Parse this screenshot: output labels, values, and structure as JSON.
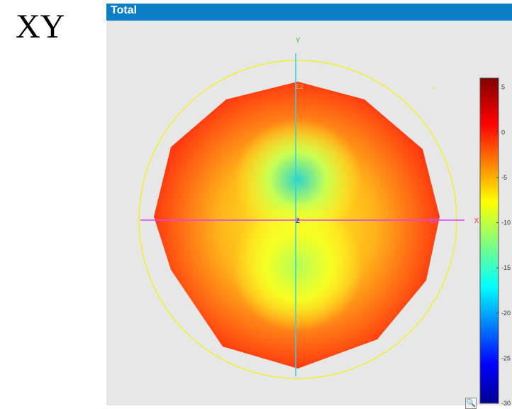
{
  "side_label": "XY",
  "panel": {
    "title": "Total"
  },
  "chart_data": {
    "type": "heatmap",
    "title": "Total",
    "plane": "XY",
    "axes": {
      "x_label": "X",
      "y_label": "Y",
      "z_label": "Z"
    },
    "pattern_markers": [
      "E2",
      "E2"
    ],
    "colorbar": {
      "min": -30,
      "max": 6,
      "ticks": [
        5,
        0,
        -5,
        -10,
        -15,
        -20,
        -25,
        -30
      ],
      "colormap": "jet"
    },
    "pattern_level_db": {
      "outer_boundary": 2,
      "top_lobe_minimum": -15,
      "bottom_lobe_minimum": -10
    }
  },
  "zoom_icon": "zoom-icon"
}
